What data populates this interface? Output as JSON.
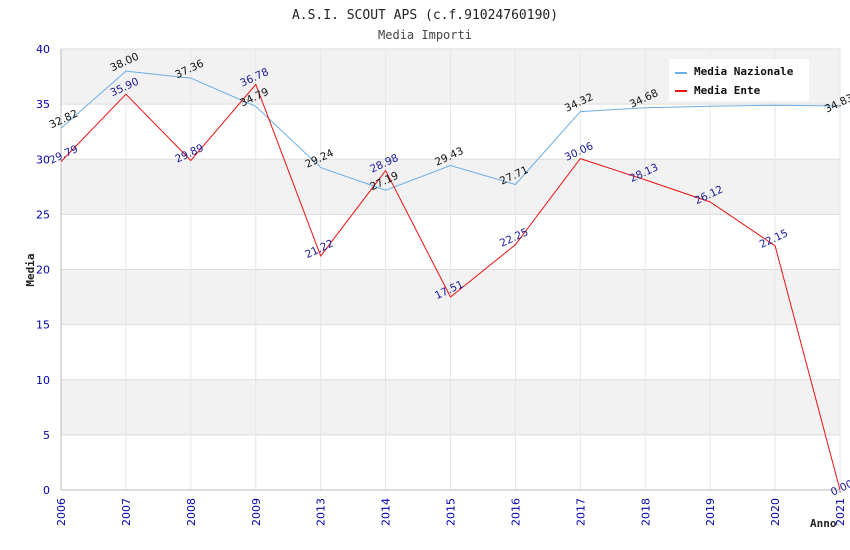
{
  "chart_data": {
    "type": "line",
    "title": "A.S.I. SCOUT APS (c.f.91024760190)",
    "subtitle": "Media Importi",
    "xlabel": "Anno",
    "ylabel": "Media",
    "categories": [
      "2006",
      "2007",
      "2008",
      "2009",
      "2013",
      "2014",
      "2015",
      "2016",
      "2017",
      "2018",
      "2019",
      "2020",
      "2021"
    ],
    "ylim": [
      0,
      40
    ],
    "yticks": [
      "0",
      "5",
      "10",
      "15",
      "20",
      "25",
      "30",
      "35",
      "40"
    ],
    "grid": true,
    "legend_position": "top-right",
    "series": [
      {
        "name": "Media Nazionale",
        "color": "#6aaee6",
        "values": [
          32.82,
          38.0,
          37.36,
          34.79,
          29.24,
          27.19,
          29.43,
          27.71,
          34.32,
          34.68,
          34.8,
          34.9,
          34.83
        ],
        "labels": [
          "32.82",
          "38.00",
          "37.36",
          "34.79",
          "29.24",
          "27.19",
          "29.43",
          "27.71",
          "34.32",
          "34.68",
          "",
          "",
          "34.83"
        ]
      },
      {
        "name": "Media Ente",
        "color": "#ee1111",
        "values": [
          29.79,
          35.9,
          29.89,
          36.78,
          21.22,
          28.98,
          17.51,
          22.25,
          30.06,
          28.13,
          26.12,
          22.15,
          0.0
        ],
        "labels": [
          "29.79",
          "35.90",
          "29.89",
          "36.78",
          "21.22",
          "28.98",
          "17.51",
          "22.25",
          "30.06",
          "28.13",
          "26.12",
          "22.15",
          "0.00"
        ]
      }
    ]
  }
}
